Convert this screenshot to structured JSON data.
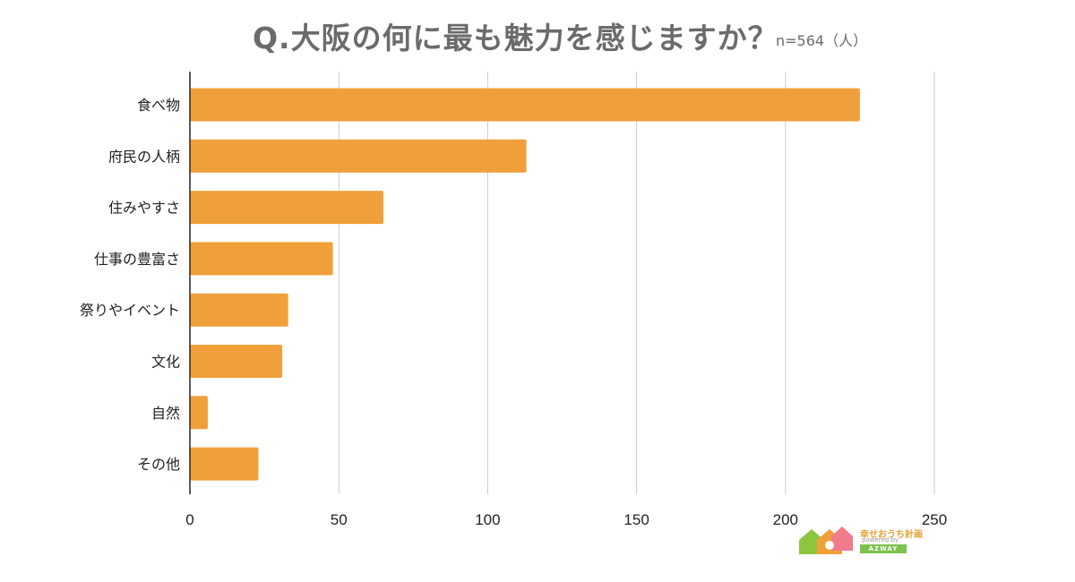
{
  "chart_data": {
    "type": "bar",
    "orientation": "horizontal",
    "title": "Q.大阪の何に最も魅力を感じますか？",
    "subtitle": "n=564（人）",
    "categories": [
      "食べ物",
      "府民の人柄",
      "住みやすさ",
      "仕事の豊富さ",
      "祭りやイベント",
      "文化",
      "自然",
      "その他"
    ],
    "values": [
      225,
      113,
      65,
      48,
      33,
      31,
      6,
      23
    ],
    "xlim": [
      0,
      250
    ],
    "xticks": [
      "0",
      "50",
      "100",
      "150",
      "200",
      "250"
    ],
    "grid": "vertical",
    "bar_color": "#f0a03a",
    "axis_color": "#222222",
    "grid_color": "#cccccc"
  },
  "logo": {
    "line1": "幸せおうち計画",
    "line2": "powered by",
    "badge": "AZWAY"
  }
}
